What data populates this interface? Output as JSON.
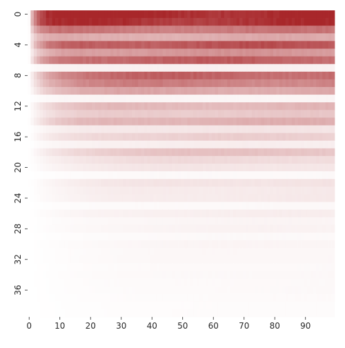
{
  "chart_data": {
    "type": "heatmap",
    "title": "",
    "xlabel": "",
    "ylabel": "",
    "n_rows": 40,
    "n_cols": 100,
    "x_ticks": [
      0,
      10,
      20,
      30,
      40,
      50,
      60,
      70,
      80,
      90
    ],
    "y_ticks": [
      0,
      4,
      8,
      12,
      16,
      20,
      24,
      28,
      32,
      36
    ],
    "x_tick_labels": [
      "0",
      "10",
      "20",
      "30",
      "40",
      "50",
      "60",
      "70",
      "80",
      "90"
    ],
    "y_tick_labels": [
      "0",
      "4",
      "8",
      "12",
      "16",
      "20",
      "24",
      "28",
      "32",
      "36"
    ],
    "colormap": {
      "low": "#ffffff",
      "high": "#a8272a"
    },
    "value_range": [
      0,
      1
    ],
    "colorbar": false,
    "row_plateau_intensity": [
      1.0,
      0.95,
      0.62,
      0.38,
      0.78,
      0.48,
      0.72,
      0.07,
      0.7,
      0.58,
      0.4,
      0.05,
      0.33,
      0.25,
      0.36,
      0.12,
      0.22,
      0.08,
      0.28,
      0.17,
      0.12,
      0.03,
      0.13,
      0.1,
      0.1,
      0.03,
      0.08,
      0.05,
      0.06,
      0.03,
      0.05,
      0.04,
      0.04,
      0.03,
      0.035,
      0.03,
      0.03,
      0.025,
      0.02,
      0.02
    ],
    "row_onset_column": [
      1,
      1,
      1,
      1,
      2,
      2,
      2,
      2,
      3,
      3,
      3,
      3,
      4,
      4,
      4,
      5,
      5,
      5,
      6,
      6,
      6,
      7,
      7,
      7,
      8,
      8,
      8,
      9,
      9,
      9,
      10,
      10,
      10,
      11,
      11,
      11,
      12,
      12,
      12,
      12
    ],
    "note_shape": "each row rises from 0 at column 0 toward its plateau intensity, with small column-to-column variation"
  }
}
